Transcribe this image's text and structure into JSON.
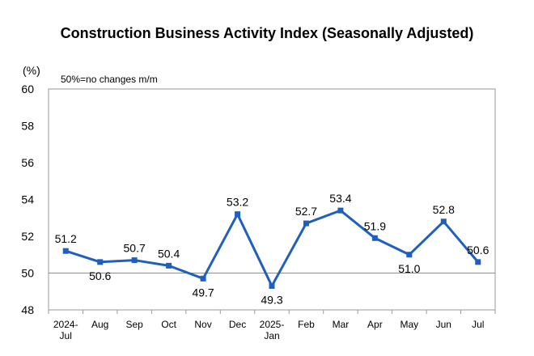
{
  "chart_data": {
    "type": "line",
    "title": "Construction Business Activity Index (Seasonally Adjusted)",
    "unit_label": "(%)",
    "annotation": "50%=no changes m/m",
    "categories": [
      [
        "2024-",
        "Jul"
      ],
      [
        "Aug"
      ],
      [
        "Sep"
      ],
      [
        "Oct"
      ],
      [
        "Nov"
      ],
      [
        "Dec"
      ],
      [
        "2025-",
        "Jan"
      ],
      [
        "Feb"
      ],
      [
        "Mar"
      ],
      [
        "Apr"
      ],
      [
        "May"
      ],
      [
        "Jun"
      ],
      [
        "Jul"
      ]
    ],
    "series": [
      {
        "values": [
          51.2,
          50.6,
          50.7,
          50.4,
          49.7,
          53.2,
          49.3,
          52.7,
          53.4,
          51.9,
          51.0,
          52.8,
          50.6
        ],
        "color": "#1f5fbf"
      }
    ],
    "data_labels": [
      "51.2",
      "50.6",
      "50.7",
      "50.4",
      "49.7",
      "53.2",
      "49.3",
      "52.7",
      "53.4",
      "51.9",
      "51.0",
      "52.8",
      "50.6"
    ],
    "y_ticks": [
      "48",
      "50",
      "52",
      "54",
      "56",
      "58",
      "60"
    ],
    "ylim": [
      48,
      60
    ],
    "reference_line": 50,
    "grid": false,
    "legend": "none"
  }
}
